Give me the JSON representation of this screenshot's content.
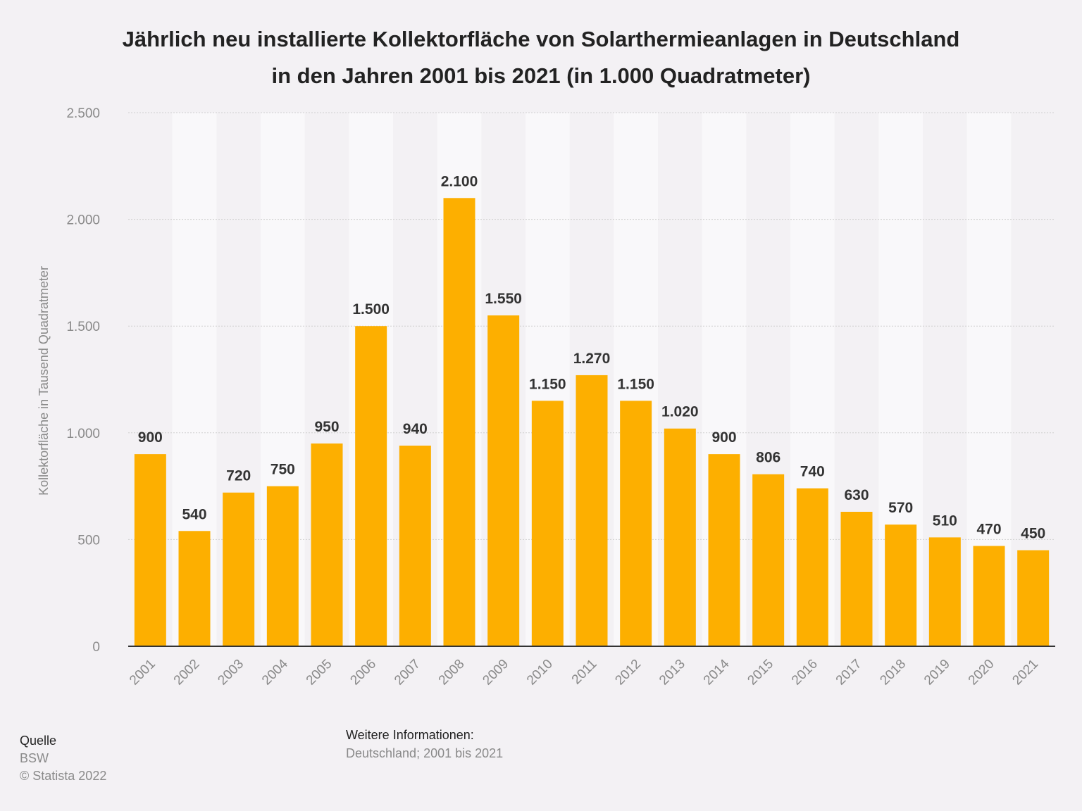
{
  "title_lines": [
    "Jährlich neu installierte Kollektorfläche von Solarthermieanlagen in Deutschland",
    "in den Jahren 2001 bis 2021 (in 1.000 Quadratmeter)"
  ],
  "colors": {
    "bar": "#FDAF00",
    "band": "#f9f8fa",
    "background": "#f3f1f4",
    "grid": "#cfcfcf",
    "axis": "#333333",
    "tick_text": "#8a8a8a",
    "label_text": "#333333"
  },
  "chart_data": {
    "type": "bar",
    "title": "Jährlich neu installierte Kollektorfläche von Solarthermieanlagen in Deutschland in den Jahren 2001 bis 2021 (in 1.000 Quadratmeter)",
    "xlabel": "",
    "ylabel": "Kollektorfläche in Tausend Quadratmeter",
    "categories": [
      "2001",
      "2002",
      "2003",
      "2004",
      "2005",
      "2006",
      "2007",
      "2008",
      "2009",
      "2010",
      "2011",
      "2012",
      "2013",
      "2014",
      "2015",
      "2016",
      "2017",
      "2018",
      "2019",
      "2020",
      "2021"
    ],
    "values": [
      900,
      540,
      720,
      750,
      950,
      1500,
      940,
      2100,
      1550,
      1150,
      1270,
      1150,
      1020,
      900,
      806,
      740,
      630,
      570,
      510,
      470,
      450
    ],
    "value_labels": [
      "900",
      "540",
      "720",
      "750",
      "950",
      "1.500",
      "940",
      "2.100",
      "1.550",
      "1.150",
      "1.270",
      "1.150",
      "1.020",
      "900",
      "806",
      "740",
      "630",
      "570",
      "510",
      "470",
      "450"
    ],
    "ylim": [
      0,
      2500
    ],
    "yticks": [
      0,
      500,
      1000,
      1500,
      2000,
      2500
    ],
    "ytick_labels": [
      "0",
      "500",
      "1.000",
      "1.500",
      "2.000",
      "2.500"
    ],
    "grid": true
  },
  "source": {
    "heading": "Quelle",
    "lines": [
      "BSW",
      "© Statista 2022"
    ]
  },
  "info": {
    "heading": "Weitere Informationen:",
    "line": "Deutschland; 2001 bis 2021"
  }
}
